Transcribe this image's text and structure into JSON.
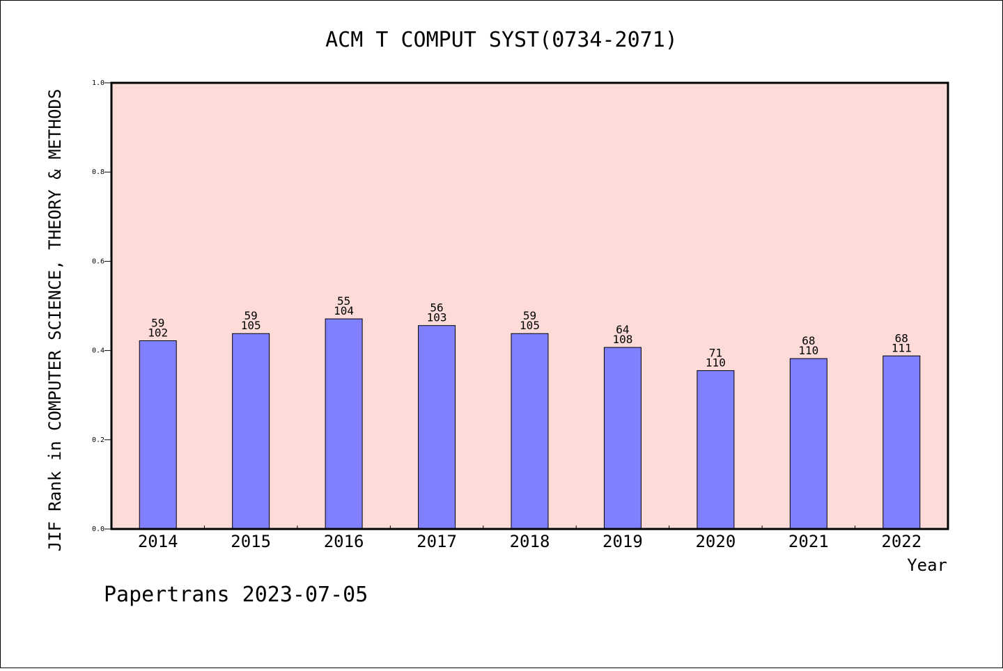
{
  "chart_data": {
    "type": "bar",
    "title": "ACM T COMPUT SYST(0734-2071)",
    "xlabel": "Year",
    "ylabel": "JIF Rank in COMPUTER SCIENCE, THEORY & METHODS",
    "ylim": [
      0,
      1.0
    ],
    "yticks": [
      "0.0",
      "0.2",
      "0.4",
      "0.6",
      "0.8",
      "1.0"
    ],
    "categories": [
      "2014",
      "2015",
      "2016",
      "2017",
      "2018",
      "2019",
      "2020",
      "2021",
      "2022"
    ],
    "series": [
      {
        "values": [
          0.422,
          0.438,
          0.471,
          0.456,
          0.438,
          0.407,
          0.355,
          0.382,
          0.388
        ],
        "rank": [
          "59",
          "59",
          "55",
          "56",
          "59",
          "64",
          "71",
          "68",
          "68"
        ],
        "total": [
          "102",
          "105",
          "104",
          "103",
          "105",
          "108",
          "110",
          "110",
          "111"
        ]
      }
    ],
    "grid": false,
    "plot_background": "#fddbd8",
    "bar_color": "#8080ff"
  },
  "footer": {
    "credit": "Papertrans 2023-07-05"
  }
}
